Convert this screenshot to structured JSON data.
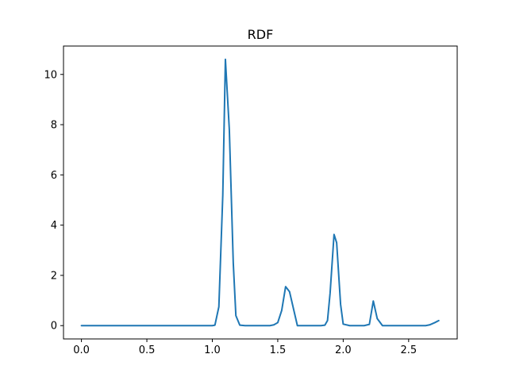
{
  "chart_data": {
    "type": "line",
    "title": "RDF",
    "xlabel": "",
    "ylabel": "",
    "xlim": [
      -0.137,
      2.871
    ],
    "ylim": [
      -0.53,
      11.13
    ],
    "grid": false,
    "xticks": [
      0.0,
      0.5,
      1.0,
      1.5,
      2.0,
      2.5
    ],
    "xtick_labels": [
      "0.0",
      "0.5",
      "1.0",
      "1.5",
      "2.0",
      "2.5"
    ],
    "yticks": [
      0,
      2,
      4,
      6,
      8,
      10
    ],
    "ytick_labels": [
      "0",
      "2",
      "4",
      "6",
      "8",
      "10"
    ],
    "series": [
      {
        "color": "#1f77b4",
        "x": [
          0.0,
          0.1,
          0.2,
          0.3,
          0.4,
          0.5,
          0.6,
          0.7,
          0.8,
          0.9,
          1.0,
          1.02,
          1.05,
          1.08,
          1.1,
          1.13,
          1.16,
          1.18,
          1.21,
          1.25,
          1.3,
          1.35,
          1.4,
          1.44,
          1.47,
          1.5,
          1.53,
          1.56,
          1.59,
          1.65,
          1.7,
          1.8,
          1.83,
          1.86,
          1.88,
          1.9,
          1.93,
          1.95,
          1.98,
          2.0,
          2.05,
          2.1,
          2.13,
          2.16,
          2.2,
          2.23,
          2.26,
          2.3,
          2.4,
          2.5,
          2.6,
          2.63,
          2.66,
          2.7,
          2.73
        ],
        "y": [
          0,
          0,
          0,
          0,
          0,
          0,
          0,
          0,
          0,
          0,
          0,
          0.02,
          0.75,
          5.2,
          10.6,
          7.8,
          2.5,
          0.4,
          0.02,
          0,
          0,
          0,
          0,
          0,
          0.03,
          0.12,
          0.6,
          1.55,
          1.35,
          0,
          0,
          0,
          0,
          0.02,
          0.2,
          1.3,
          3.63,
          3.3,
          0.85,
          0.06,
          0,
          0,
          0,
          0,
          0.05,
          0.98,
          0.28,
          0,
          0,
          0,
          0,
          0,
          0.03,
          0.12,
          0.2
        ]
      }
    ]
  }
}
